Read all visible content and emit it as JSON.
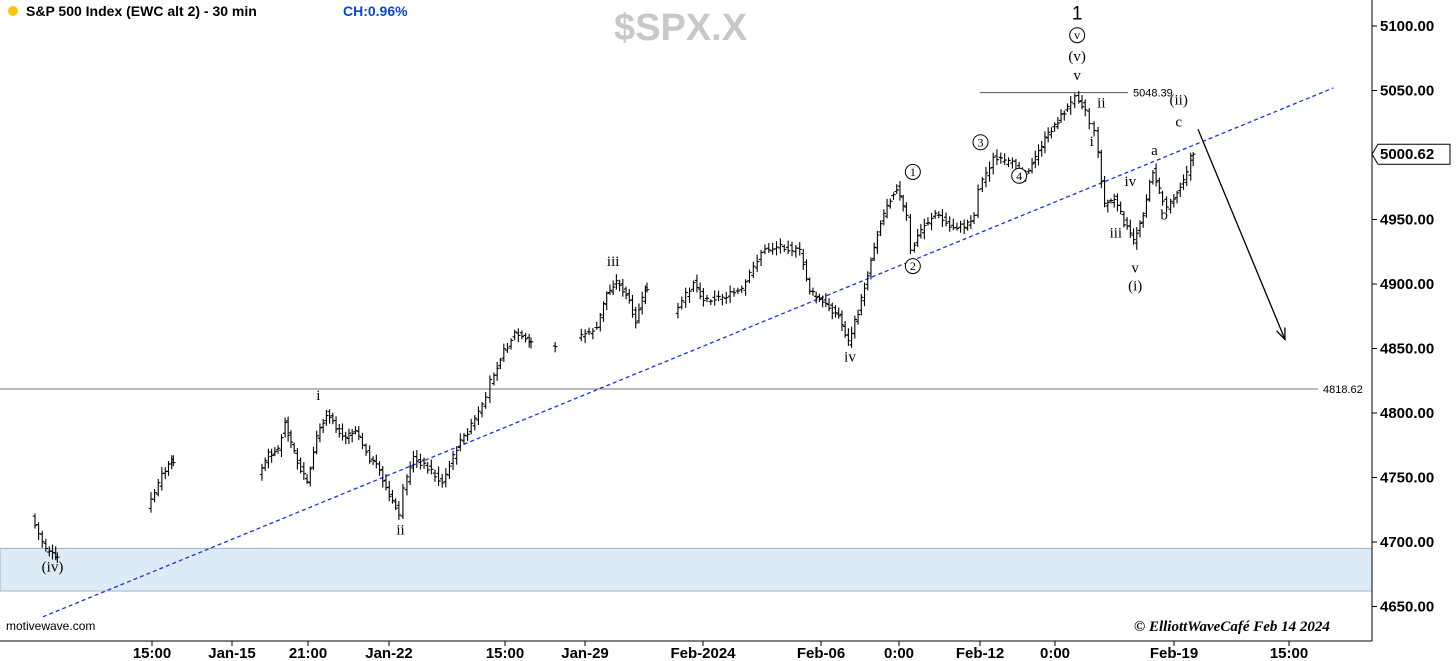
{
  "header": {
    "title": "S&P 500 Index (EWC alt 2) - 30 min",
    "change": "CH:0.96%",
    "symbol": "$SPX.X",
    "status_dot_color": "#f5c518"
  },
  "footer": {
    "source": "motivewave.com",
    "credit": "© ElliottWaveCafé Feb 14 2024"
  },
  "levels": [
    {
      "value": 5048.39,
      "label": "5048.39"
    },
    {
      "value": 4818.62,
      "label": "4818.62"
    }
  ],
  "support_zone": {
    "low": 4662,
    "high": 4695,
    "color": "#dcebf5"
  },
  "last_price": {
    "value": 5000.62,
    "label": "5000.62"
  },
  "chart_data": {
    "type": "ohlc",
    "title": "S&P 500 Index (EWC alt 2) - 30 min",
    "ylim": [
      4630,
      5120
    ],
    "y_ticks": [
      "4650.00",
      "4700.00",
      "4750.00",
      "4800.00",
      "4850.00",
      "4900.00",
      "4950.00",
      "5000.00",
      "5050.00",
      "5100.00"
    ],
    "x_ticks": [
      "15:00",
      "Jan-15",
      "21:00",
      "Jan-22",
      "15:00",
      "Jan-29",
      "Feb-2024",
      "Feb-06",
      "0:00",
      "Feb-12",
      "0:00",
      "Feb-19",
      "15:00"
    ],
    "grid": false,
    "price_path": [
      {
        "date": "2024-01-10 11:00",
        "close": 4720
      },
      {
        "date": "2024-01-10 14:00",
        "close": 4693
      },
      {
        "date": "2024-01-10 16:00",
        "close": 4688
      },
      {
        "date": "2024-01-11 11:00",
        "close": 4725
      },
      {
        "date": "2024-01-11 14:00",
        "close": 4752
      },
      {
        "date": "2024-01-11 16:00",
        "close": 4762
      },
      {
        "date": "2024-01-12 10:00",
        "close": 4752
      },
      {
        "date": "2024-01-12 12:00",
        "close": 4768
      },
      {
        "date": "2024-01-12 14:00",
        "close": 4772
      },
      {
        "date": "2024-01-12 15:30",
        "close": 4792
      },
      {
        "date": "2024-01-12 16:00",
        "close": 4785
      },
      {
        "date": "2024-01-12 18:00",
        "close": 4762
      },
      {
        "date": "2024-01-12 20:00",
        "close": 4745
      },
      {
        "date": "2024-01-12 22:00",
        "close": 4780
      },
      {
        "date": "2024-01-13 00:00",
        "close": 4800
      },
      {
        "date": "2024-01-13 02:00",
        "close": 4788
      },
      {
        "date": "2024-01-13 04:00",
        "close": 4782
      },
      {
        "date": "2024-01-13 06:00",
        "close": 4788
      },
      {
        "date": "2024-01-13 09:00",
        "close": 4765
      },
      {
        "date": "2024-01-13 11:00",
        "close": 4755
      },
      {
        "date": "2024-01-13 13:00",
        "close": 4735
      },
      {
        "date": "2024-01-13 15:00",
        "close": 4722
      },
      {
        "date": "2024-01-13 16:00",
        "close": 4740
      },
      {
        "date": "2024-01-13 18:00",
        "close": 4765
      },
      {
        "date": "2024-01-13 21:00",
        "close": 4758
      },
      {
        "date": "2024-01-14 00:00",
        "close": 4745
      },
      {
        "date": "2024-01-14 03:00",
        "close": 4773
      },
      {
        "date": "2024-01-14 06:00",
        "close": 4790
      },
      {
        "date": "2024-01-14 09:00",
        "close": 4810
      },
      {
        "date": "2024-01-14 10:00",
        "close": 4825
      },
      {
        "date": "2024-01-14 12:00",
        "close": 4843
      },
      {
        "date": "2024-01-14 15:00",
        "close": 4862
      },
      {
        "date": "2024-01-14 18:00",
        "close": 4855
      },
      {
        "date": "2024-01-14 23:00",
        "close": 4852
      },
      {
        "date": "2024-01-15 04:00",
        "close": 4858
      },
      {
        "date": "2024-01-15 08:00",
        "close": 4866
      },
      {
        "date": "2024-01-15 10:00",
        "close": 4893
      },
      {
        "date": "2024-01-15 12:00",
        "close": 4902
      },
      {
        "date": "2024-01-15 14:00",
        "close": 4892
      },
      {
        "date": "2024-01-15 16:00",
        "close": 4872
      },
      {
        "date": "2024-01-15 18:00",
        "close": 4895
      },
      {
        "date": "2024-01-16 00:00",
        "close": 4875
      },
      {
        "date": "2024-01-16 04:00",
        "close": 4902
      },
      {
        "date": "2024-01-16 06:00",
        "close": 4888
      },
      {
        "date": "2024-01-16 10:00",
        "close": 4890
      },
      {
        "date": "2024-01-16 14:00",
        "close": 4895
      },
      {
        "date": "2024-01-16 18:00",
        "close": 4925
      },
      {
        "date": "2024-01-16 22:00",
        "close": 4930
      },
      {
        "date": "2024-01-17 02:00",
        "close": 4925
      },
      {
        "date": "2024-01-17 04:00",
        "close": 4895
      },
      {
        "date": "2024-01-17 06:00",
        "close": 4887
      },
      {
        "date": "2024-01-17 08:00",
        "close": 4882
      },
      {
        "date": "2024-01-17 10:00",
        "close": 4875
      },
      {
        "date": "2024-01-17 12:00",
        "close": 4855
      },
      {
        "date": "2024-01-17 14:00",
        "close": 4878
      },
      {
        "date": "2024-01-17 16:00",
        "close": 4908
      },
      {
        "date": "2024-01-17 18:00",
        "close": 4940
      },
      {
        "date": "2024-01-17 20:00",
        "close": 4962
      },
      {
        "date": "2024-01-17 22:00",
        "close": 4975
      },
      {
        "date": "2024-01-18 00:00",
        "close": 4952
      },
      {
        "date": "2024-01-18 01:00",
        "close": 4925
      },
      {
        "date": "2024-01-18 03:00",
        "close": 4942
      },
      {
        "date": "2024-01-18 06:00",
        "close": 4955
      },
      {
        "date": "2024-01-18 09:00",
        "close": 4944
      },
      {
        "date": "2024-01-18 12:00",
        "close": 4945
      },
      {
        "date": "2024-01-18 14:00",
        "close": 4953
      },
      {
        "date": "2024-01-18 15:00",
        "close": 4975
      },
      {
        "date": "2024-01-18 18:00",
        "close": 4997
      },
      {
        "date": "2024-01-18 22:00",
        "close": 4993
      },
      {
        "date": "2024-01-19 00:00",
        "close": 4985
      },
      {
        "date": "2024-01-19 02:00",
        "close": 4992
      },
      {
        "date": "2024-01-19 04:00",
        "close": 5008
      },
      {
        "date": "2024-01-19 06:00",
        "close": 5020
      },
      {
        "date": "2024-01-19 08:00",
        "close": 5030
      },
      {
        "date": "2024-01-19 10:00",
        "close": 5040
      },
      {
        "date": "2024-01-19 11:00",
        "close": 5048
      },
      {
        "date": "2024-01-19 13:00",
        "close": 5035
      },
      {
        "date": "2024-01-19 14:00",
        "close": 5025
      },
      {
        "date": "2024-01-19 15:00",
        "close": 5020
      },
      {
        "date": "2024-01-19 17:00",
        "close": 4962
      },
      {
        "date": "2024-01-19 19:00",
        "close": 4966
      },
      {
        "date": "2024-01-19 21:00",
        "close": 4948
      },
      {
        "date": "2024-01-19 23:00",
        "close": 4933
      },
      {
        "date": "2024-01-20 01:00",
        "close": 4955
      },
      {
        "date": "2024-01-20 03:00",
        "close": 4988
      },
      {
        "date": "2024-01-20 05:00",
        "close": 4965
      },
      {
        "date": "2024-01-20 06:00",
        "close": 4960
      },
      {
        "date": "2024-01-20 08:00",
        "close": 4972
      },
      {
        "date": "2024-01-20 10:00",
        "close": 4985
      },
      {
        "date": "2024-01-20 11:00",
        "close": 5000.62
      }
    ]
  },
  "wave_labels": [
    {
      "text": "(iv)",
      "date": "2024-01-10 15:00",
      "price": 4677
    },
    {
      "text": "i",
      "date": "2024-01-12 22:00",
      "price": 4810
    },
    {
      "text": "ii",
      "date": "2024-01-13 15:00",
      "price": 4706
    },
    {
      "text": "iii",
      "date": "2024-01-15 11:00",
      "price": 4914
    },
    {
      "text": "iv",
      "date": "2024-01-17 12:00",
      "price": 4840
    },
    {
      "text": "1",
      "date": "2024-01-18 01:00",
      "price": 4983,
      "circled": true
    },
    {
      "text": "2",
      "date": "2024-01-18 01:00",
      "price": 4910,
      "circled": true
    },
    {
      "text": "3",
      "date": "2024-01-18 15:00",
      "price": 5006,
      "circled": true
    },
    {
      "text": "4",
      "date": "2024-01-18 23:00",
      "price": 4980,
      "circled": true
    },
    {
      "text": "1",
      "date": "2024-01-19 11:00",
      "price": 5105,
      "large": true
    },
    {
      "text": "v",
      "date": "2024-01-19 11:00",
      "price": 5089,
      "circled": true
    },
    {
      "text": "(v)",
      "date": "2024-01-19 11:00",
      "price": 5073
    },
    {
      "text": "v",
      "date": "2024-01-19 11:00",
      "price": 5058
    },
    {
      "text": "ii",
      "date": "2024-01-19 16:00",
      "price": 5037
    },
    {
      "text": "i",
      "date": "2024-01-19 14:00",
      "price": 5007
    },
    {
      "text": "iv",
      "date": "2024-01-19 22:00",
      "price": 4976
    },
    {
      "text": "iii",
      "date": "2024-01-19 19:00",
      "price": 4936
    },
    {
      "text": "v",
      "date": "2024-01-19 23:00",
      "price": 4909
    },
    {
      "text": "(i)",
      "date": "2024-01-19 23:00",
      "price": 4895
    },
    {
      "text": "a",
      "date": "2024-01-20 03:00",
      "price": 5000
    },
    {
      "text": "b",
      "date": "2024-01-20 05:00",
      "price": 4950
    },
    {
      "text": "(ii)",
      "date": "2024-01-20 08:00",
      "price": 5039
    },
    {
      "text": "c",
      "date": "2024-01-20 08:00",
      "price": 5022
    }
  ],
  "trendline": {
    "style": "dashed",
    "color": "#1a33d6",
    "from": {
      "date": "2024-01-10 13:00",
      "price": 4642
    },
    "to": {
      "date": "2024-01-21 16:00",
      "price": 5052
    }
  },
  "projection_arrow": {
    "from": {
      "date": "2024-01-20 12:00",
      "price": 5020
    },
    "to": {
      "date": "2024-01-21 06:00",
      "price": 4857
    }
  }
}
